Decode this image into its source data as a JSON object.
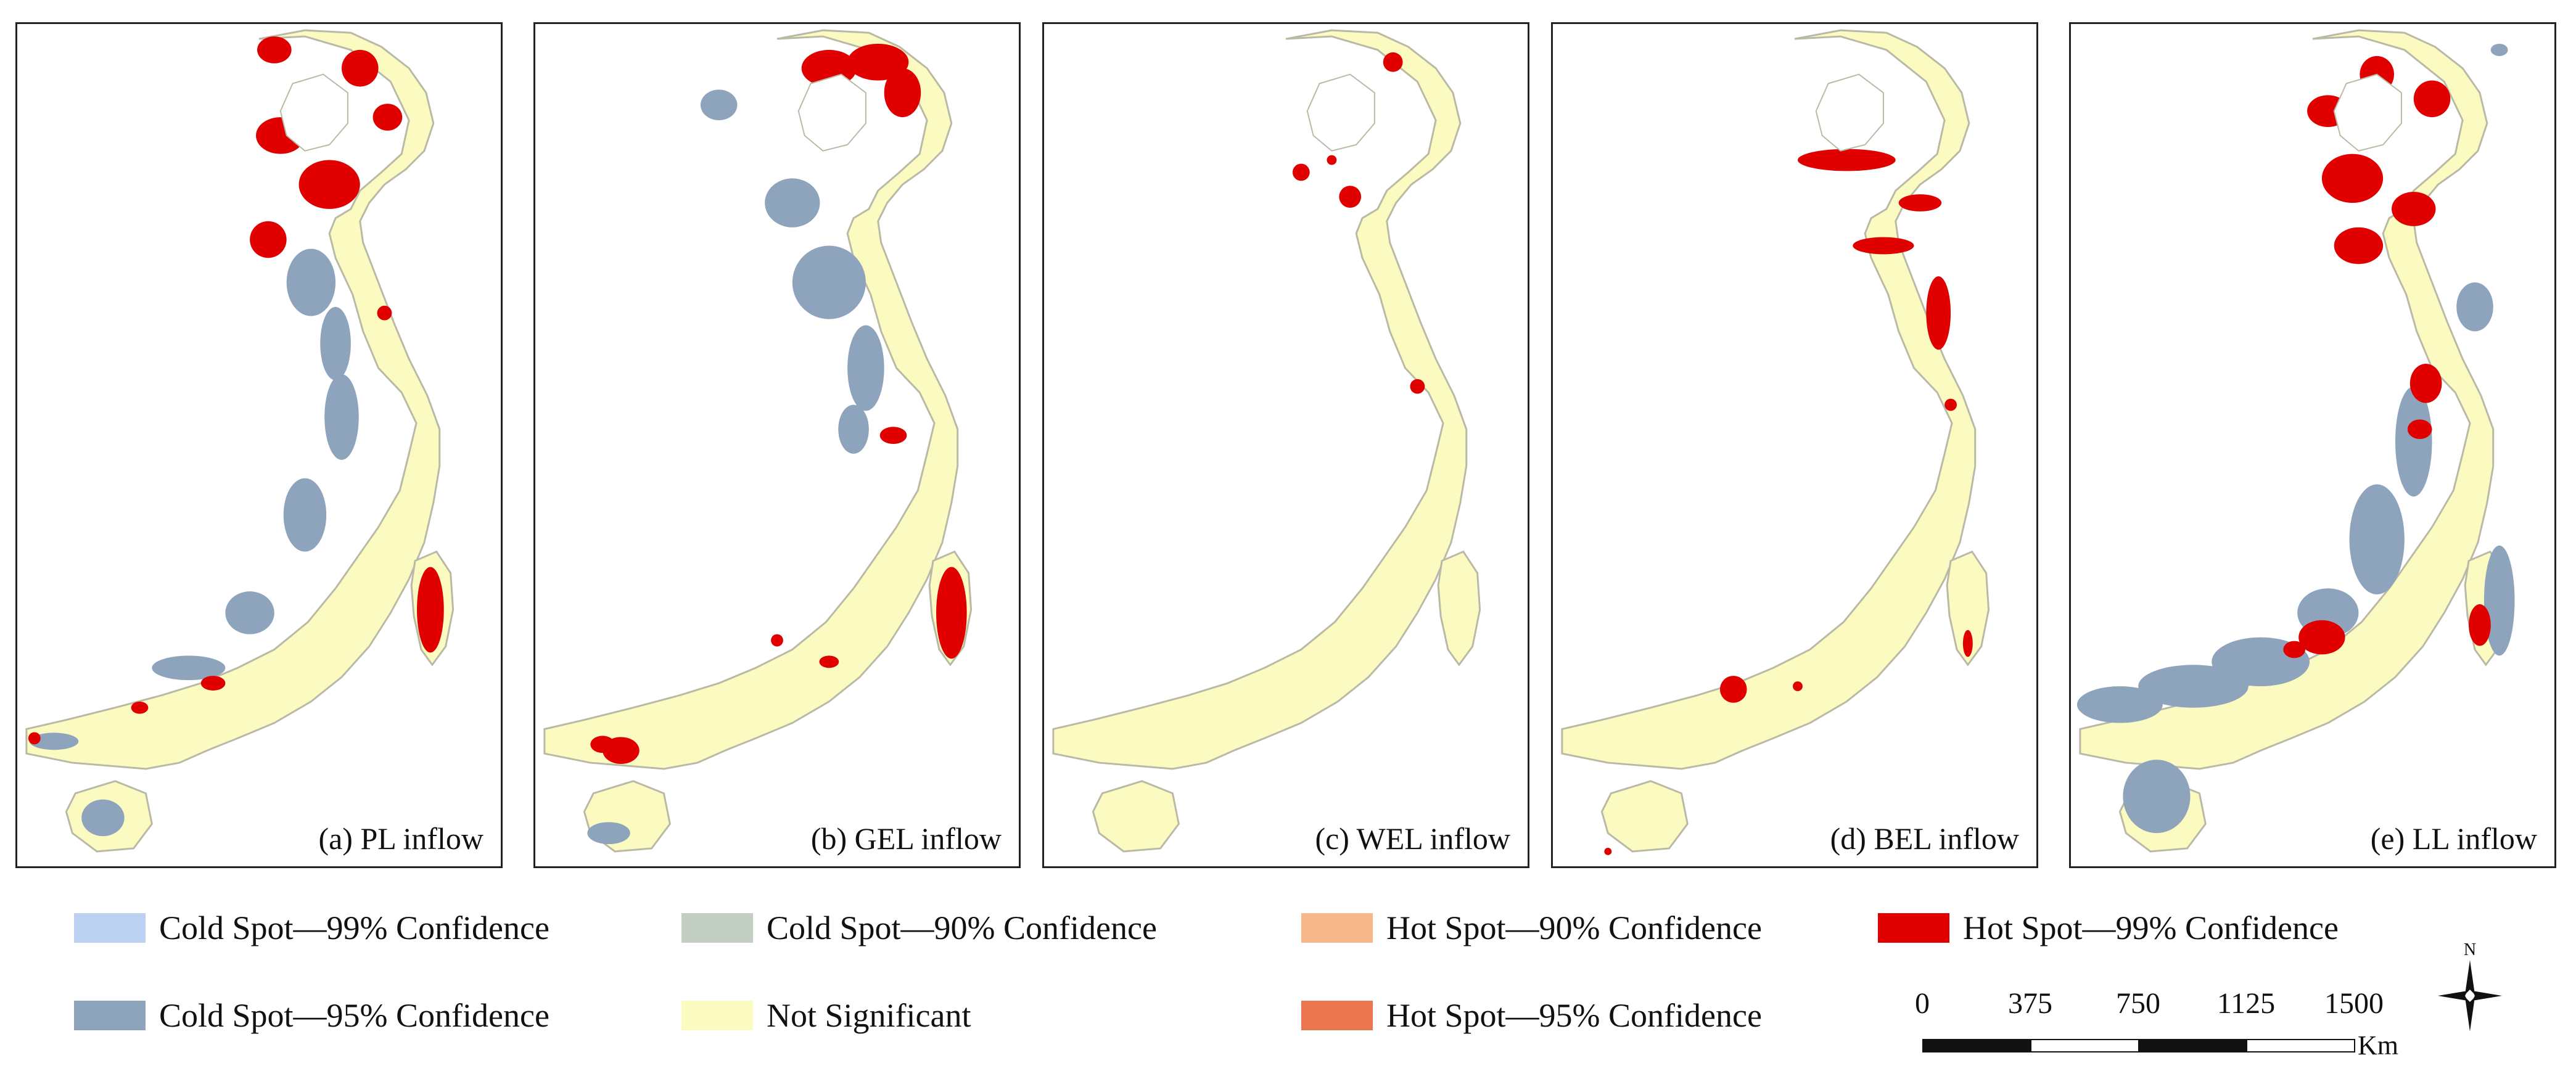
{
  "colors": {
    "cold99": "#bcd0f2",
    "cold95": "#8ea4bd",
    "cold90": "#c3cec3",
    "not_significant": "#fbfac0",
    "hot90": "#f6b88a",
    "hot95": "#ea7650",
    "hot99": "#e00000",
    "outline": "#b9b9a6"
  },
  "panels": [
    {
      "id": "a",
      "caption": "(a) PL inflow",
      "pattern": "pl"
    },
    {
      "id": "b",
      "caption": "(b) GEL inflow",
      "pattern": "gel"
    },
    {
      "id": "c",
      "caption": "(c) WEL inflow",
      "pattern": "wel"
    },
    {
      "id": "d",
      "caption": "(d) BEL inflow",
      "pattern": "bel"
    },
    {
      "id": "e",
      "caption": "(e) LL inflow",
      "pattern": "ll"
    }
  ],
  "legend": [
    {
      "label": "Cold Spot—99% Confidence",
      "color_key": "cold99"
    },
    {
      "label": "Cold Spot—90% Confidence",
      "color_key": "cold90"
    },
    {
      "label": "Hot Spot—90% Confidence",
      "color_key": "hot90"
    },
    {
      "label": "Hot Spot—99% Confidence",
      "color_key": "hot99"
    },
    {
      "label": "Cold Spot—95% Confidence",
      "color_key": "cold95"
    },
    {
      "label": "Not Significant",
      "color_key": "not_significant"
    },
    {
      "label": "Hot Spot—95% Confidence",
      "color_key": "hot95"
    }
  ],
  "scale": {
    "ticks": [
      "0",
      "375",
      "750",
      "1125",
      "1500"
    ],
    "unit": "Km"
  },
  "north": {
    "label": "N",
    "icon": "north-arrow-icon"
  }
}
